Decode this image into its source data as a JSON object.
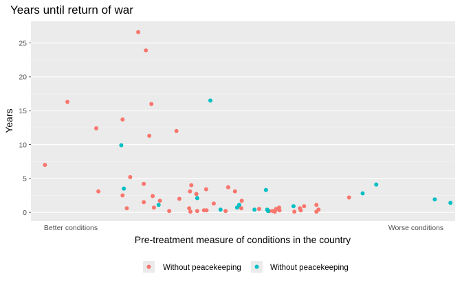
{
  "chart_data": {
    "type": "scatter",
    "title": "Years until return of war",
    "xlabel": "Pre-treatment measure of conditions in the country",
    "ylabel": "Years",
    "x_tick_labels": [
      "Better conditions",
      "Worse conditions"
    ],
    "xlim": [
      0,
      100
    ],
    "ylim": [
      -1.3,
      28.2
    ],
    "y_ticks": [
      0,
      5,
      10,
      15,
      20,
      25
    ],
    "grid": true,
    "legend_position": "bottom",
    "series": [
      {
        "name": "Without peacekeeping",
        "color": "#F8766D",
        "points": [
          {
            "x": 3.3,
            "y": 7.0
          },
          {
            "x": 8.6,
            "y": 16.3
          },
          {
            "x": 15.4,
            "y": 12.4
          },
          {
            "x": 15.9,
            "y": 3.1
          },
          {
            "x": 21.6,
            "y": 13.7
          },
          {
            "x": 21.6,
            "y": 2.5
          },
          {
            "x": 22.6,
            "y": 0.6
          },
          {
            "x": 23.4,
            "y": 5.2
          },
          {
            "x": 25.3,
            "y": 26.6
          },
          {
            "x": 26.6,
            "y": 1.5
          },
          {
            "x": 26.6,
            "y": 4.2
          },
          {
            "x": 27.1,
            "y": 23.9
          },
          {
            "x": 27.9,
            "y": 11.3
          },
          {
            "x": 28.4,
            "y": 16.0
          },
          {
            "x": 28.7,
            "y": 2.4
          },
          {
            "x": 29.0,
            "y": 0.7
          },
          {
            "x": 30.4,
            "y": 1.7
          },
          {
            "x": 32.6,
            "y": 0.2
          },
          {
            "x": 34.3,
            "y": 12.0
          },
          {
            "x": 35.0,
            "y": 2.0
          },
          {
            "x": 37.3,
            "y": 0.6
          },
          {
            "x": 37.5,
            "y": 3.1
          },
          {
            "x": 37.6,
            "y": 0.1
          },
          {
            "x": 37.8,
            "y": 4.0
          },
          {
            "x": 39.0,
            "y": 2.7
          },
          {
            "x": 39.2,
            "y": 0.2
          },
          {
            "x": 40.8,
            "y": 0.3
          },
          {
            "x": 41.3,
            "y": 3.4
          },
          {
            "x": 41.4,
            "y": 0.3
          },
          {
            "x": 43.1,
            "y": 1.3
          },
          {
            "x": 45.9,
            "y": 0.2
          },
          {
            "x": 46.5,
            "y": 3.7
          },
          {
            "x": 48.1,
            "y": 3.1
          },
          {
            "x": 49.0,
            "y": 0.9
          },
          {
            "x": 49.6,
            "y": 0.6
          },
          {
            "x": 49.7,
            "y": 1.7
          },
          {
            "x": 53.8,
            "y": 0.5
          },
          {
            "x": 56.2,
            "y": 0.2
          },
          {
            "x": 57.0,
            "y": 0.2
          },
          {
            "x": 57.8,
            "y": 0.5
          },
          {
            "x": 57.5,
            "y": 0.1
          },
          {
            "x": 58.5,
            "y": 0.7
          },
          {
            "x": 58.6,
            "y": 0.3
          },
          {
            "x": 62.1,
            "y": 0.1
          },
          {
            "x": 63.4,
            "y": 0.6
          },
          {
            "x": 63.6,
            "y": 0.3
          },
          {
            "x": 64.4,
            "y": 0.9
          },
          {
            "x": 67.3,
            "y": 1.1
          },
          {
            "x": 67.3,
            "y": 0.1
          },
          {
            "x": 67.8,
            "y": 0.4
          },
          {
            "x": 75.0,
            "y": 2.2
          }
        ]
      },
      {
        "name": "Without peacekeeping",
        "color": "#00BFC4",
        "points": [
          {
            "x": 21.3,
            "y": 9.9
          },
          {
            "x": 21.9,
            "y": 3.5
          },
          {
            "x": 30.1,
            "y": 1.1
          },
          {
            "x": 39.2,
            "y": 2.1
          },
          {
            "x": 42.3,
            "y": 16.5
          },
          {
            "x": 44.7,
            "y": 0.4
          },
          {
            "x": 48.6,
            "y": 0.7
          },
          {
            "x": 49.1,
            "y": 1.1
          },
          {
            "x": 52.7,
            "y": 0.4
          },
          {
            "x": 55.4,
            "y": 3.3
          },
          {
            "x": 55.7,
            "y": 0.4
          },
          {
            "x": 55.9,
            "y": 0.2
          },
          {
            "x": 61.9,
            "y": 0.9
          },
          {
            "x": 78.2,
            "y": 2.8
          },
          {
            "x": 81.4,
            "y": 4.1
          },
          {
            "x": 95.2,
            "y": 1.9
          },
          {
            "x": 98.9,
            "y": 1.4
          }
        ]
      }
    ]
  }
}
